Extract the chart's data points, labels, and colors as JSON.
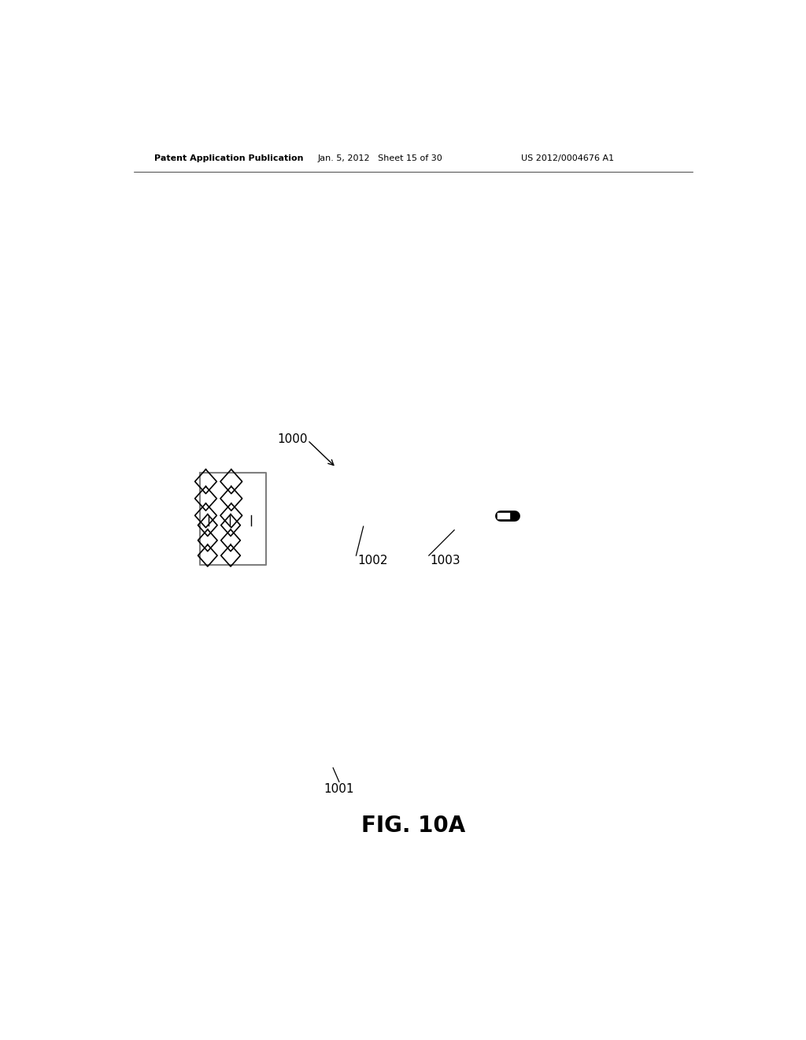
{
  "title": "FIG. 10A",
  "patent_header_left": "Patent Application Publication",
  "patent_header_center": "Jan. 5, 2012   Sheet 15 of 30",
  "patent_header_right": "US 2012/0004676 A1",
  "label_1000": "1000",
  "label_1001": "1001",
  "label_1002": "1002",
  "label_1003": "1003",
  "bg_color": "#ffffff",
  "line_color": "#000000"
}
